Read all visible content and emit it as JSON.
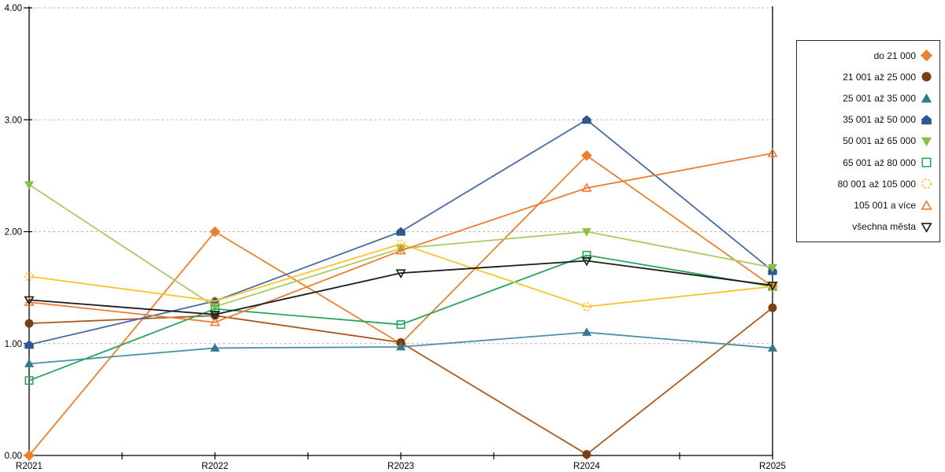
{
  "chart_data": {
    "type": "line",
    "title": "",
    "xlabel": "",
    "ylabel": "",
    "categories": [
      "R2021",
      "R2022",
      "R2023",
      "R2024",
      "R2025"
    ],
    "ylim": [
      0,
      4
    ],
    "ytick_labels": [
      "0.00",
      "1.00",
      "2.00",
      "3.00",
      "4.00"
    ],
    "grid": "horizontal-dashed",
    "legend_position": "right",
    "series": [
      {
        "name": "do 21 000",
        "color": "#E9812F",
        "marker": "diamond",
        "filled": true,
        "values": [
          0.0,
          2.0,
          1.0,
          2.68,
          1.51
        ]
      },
      {
        "name": "21 001 až 25 000",
        "color": "#A85B20",
        "marker_color": "#7C3E10",
        "marker": "circle",
        "filled": true,
        "values": [
          1.18,
          1.25,
          1.01,
          0.01,
          1.32
        ]
      },
      {
        "name": "25 001 až 35 000",
        "color": "#4C91A6",
        "marker_color": "#35788E",
        "marker": "triangle-up",
        "filled": true,
        "values": [
          0.82,
          0.96,
          0.97,
          1.1,
          0.96
        ]
      },
      {
        "name": "35 001 až 50 000",
        "color": "#486CA2",
        "marker_color": "#2F578E",
        "marker": "pentagon",
        "filled": true,
        "values": [
          0.99,
          1.38,
          2.0,
          3.0,
          1.65
        ]
      },
      {
        "name": "50 001 až 65 000",
        "color": "#A6CD63",
        "marker_color": "#8FBE45",
        "marker": "triangle-down",
        "filled": true,
        "values": [
          2.42,
          1.33,
          1.85,
          2.0,
          1.68
        ]
      },
      {
        "name": "65 001 až 80 000",
        "color": "#27A65B",
        "marker": "square",
        "filled": false,
        "values": [
          0.67,
          1.31,
          1.17,
          1.79,
          1.51
        ]
      },
      {
        "name": "80 001 až 105 000",
        "color": "#FDC32A",
        "marker": "circle-dashed",
        "filled": false,
        "values": [
          1.6,
          1.38,
          1.89,
          1.33,
          1.51
        ]
      },
      {
        "name": "105 001 a více",
        "color": "#ED7C31",
        "marker": "triangle-up",
        "filled": false,
        "values": [
          1.37,
          1.19,
          1.83,
          2.39,
          2.7
        ]
      },
      {
        "name": "všechna města",
        "color": "#1A1A1A",
        "marker": "triangle-down",
        "filled": false,
        "values": [
          1.39,
          1.26,
          1.63,
          1.74,
          1.52
        ]
      }
    ]
  }
}
